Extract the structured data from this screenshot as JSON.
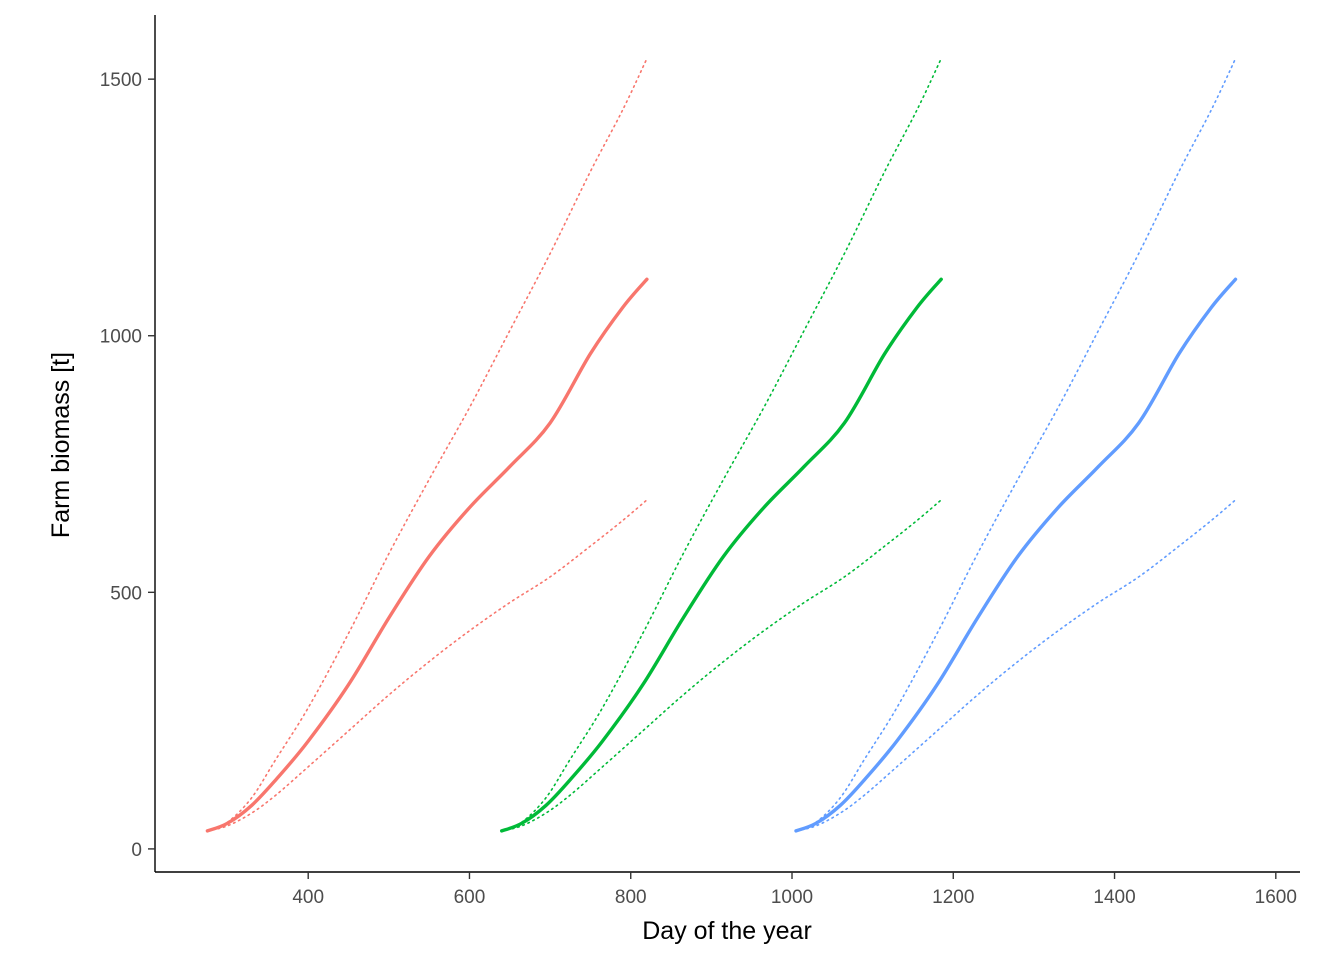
{
  "chart_data": {
    "type": "line",
    "title": "",
    "xlabel": "Day of the year",
    "ylabel": "Farm biomass [t]",
    "xlim": [
      210,
      1630
    ],
    "ylim": [
      -45,
      1625
    ],
    "xticks": [
      400,
      600,
      800,
      1000,
      1200,
      1400,
      1600
    ],
    "yticks": [
      0,
      500,
      1000,
      1500
    ],
    "grid": false,
    "legend": "none",
    "series": [
      {
        "group": 1,
        "color": "#F8766D",
        "median": [
          [
            275,
            35
          ],
          [
            300,
            50
          ],
          [
            330,
            85
          ],
          [
            360,
            135
          ],
          [
            400,
            210
          ],
          [
            450,
            320
          ],
          [
            500,
            450
          ],
          [
            550,
            570
          ],
          [
            600,
            665
          ],
          [
            650,
            745
          ],
          [
            700,
            830
          ],
          [
            750,
            965
          ],
          [
            790,
            1055
          ],
          [
            820,
            1110
          ]
        ],
        "upper": [
          [
            275,
            35
          ],
          [
            300,
            52
          ],
          [
            330,
            100
          ],
          [
            360,
            175
          ],
          [
            400,
            275
          ],
          [
            450,
            420
          ],
          [
            500,
            575
          ],
          [
            550,
            720
          ],
          [
            600,
            860
          ],
          [
            650,
            1010
          ],
          [
            700,
            1160
          ],
          [
            750,
            1320
          ],
          [
            790,
            1440
          ],
          [
            820,
            1540
          ]
        ],
        "lower": [
          [
            275,
            35
          ],
          [
            300,
            45
          ],
          [
            330,
            70
          ],
          [
            360,
            105
          ],
          [
            400,
            160
          ],
          [
            450,
            230
          ],
          [
            500,
            300
          ],
          [
            550,
            365
          ],
          [
            600,
            425
          ],
          [
            650,
            480
          ],
          [
            700,
            530
          ],
          [
            750,
            590
          ],
          [
            790,
            640
          ],
          [
            820,
            680
          ]
        ]
      },
      {
        "group": 2,
        "color": "#00BA38",
        "median": [
          [
            640,
            35
          ],
          [
            665,
            50
          ],
          [
            695,
            85
          ],
          [
            725,
            135
          ],
          [
            765,
            210
          ],
          [
            815,
            320
          ],
          [
            865,
            450
          ],
          [
            915,
            570
          ],
          [
            965,
            665
          ],
          [
            1015,
            745
          ],
          [
            1065,
            830
          ],
          [
            1115,
            965
          ],
          [
            1155,
            1055
          ],
          [
            1185,
            1110
          ]
        ],
        "upper": [
          [
            640,
            35
          ],
          [
            665,
            52
          ],
          [
            695,
            100
          ],
          [
            725,
            175
          ],
          [
            765,
            275
          ],
          [
            815,
            420
          ],
          [
            865,
            575
          ],
          [
            915,
            720
          ],
          [
            965,
            860
          ],
          [
            1015,
            1010
          ],
          [
            1065,
            1160
          ],
          [
            1115,
            1320
          ],
          [
            1155,
            1440
          ],
          [
            1185,
            1540
          ]
        ],
        "lower": [
          [
            640,
            35
          ],
          [
            665,
            45
          ],
          [
            695,
            70
          ],
          [
            725,
            105
          ],
          [
            765,
            160
          ],
          [
            815,
            230
          ],
          [
            865,
            300
          ],
          [
            915,
            365
          ],
          [
            965,
            425
          ],
          [
            1015,
            480
          ],
          [
            1065,
            530
          ],
          [
            1115,
            590
          ],
          [
            1155,
            640
          ],
          [
            1185,
            680
          ]
        ]
      },
      {
        "group": 3,
        "color": "#619CFF",
        "median": [
          [
            1005,
            35
          ],
          [
            1030,
            50
          ],
          [
            1060,
            85
          ],
          [
            1090,
            135
          ],
          [
            1130,
            210
          ],
          [
            1180,
            320
          ],
          [
            1230,
            450
          ],
          [
            1280,
            570
          ],
          [
            1330,
            665
          ],
          [
            1380,
            745
          ],
          [
            1430,
            830
          ],
          [
            1480,
            965
          ],
          [
            1520,
            1055
          ],
          [
            1550,
            1110
          ]
        ],
        "upper": [
          [
            1005,
            35
          ],
          [
            1030,
            52
          ],
          [
            1060,
            100
          ],
          [
            1090,
            175
          ],
          [
            1130,
            275
          ],
          [
            1180,
            420
          ],
          [
            1230,
            575
          ],
          [
            1280,
            720
          ],
          [
            1330,
            860
          ],
          [
            1380,
            1010
          ],
          [
            1430,
            1160
          ],
          [
            1480,
            1320
          ],
          [
            1520,
            1440
          ],
          [
            1550,
            1540
          ]
        ],
        "lower": [
          [
            1005,
            35
          ],
          [
            1030,
            45
          ],
          [
            1060,
            70
          ],
          [
            1090,
            105
          ],
          [
            1130,
            160
          ],
          [
            1180,
            230
          ],
          [
            1230,
            300
          ],
          [
            1280,
            365
          ],
          [
            1330,
            425
          ],
          [
            1380,
            480
          ],
          [
            1430,
            530
          ],
          [
            1480,
            590
          ],
          [
            1520,
            640
          ],
          [
            1550,
            680
          ]
        ]
      }
    ]
  }
}
